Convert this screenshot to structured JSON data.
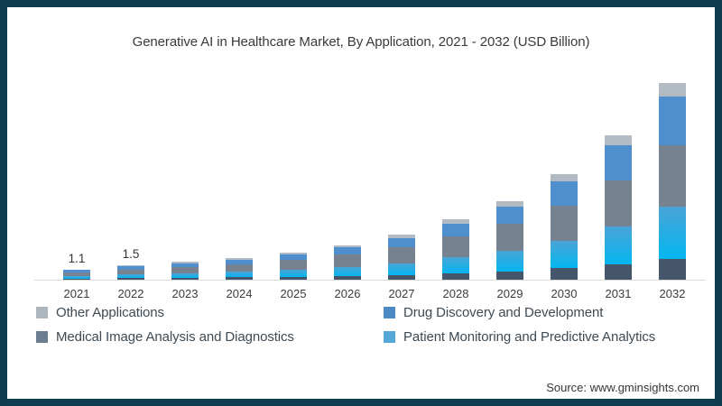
{
  "title": "Generative AI in Healthcare Market, By Application, 2021 - 2032 (USD Billion)",
  "source": "Source: www.gminsights.com",
  "frame": {
    "border_color": "#0e3e4f",
    "background": "#ffffff"
  },
  "legend": [
    {
      "label": "Other Applications",
      "color": "#aeb6bd"
    },
    {
      "label": "Drug Discovery and Development",
      "color": "#4a89c4"
    },
    {
      "label": "Medical Image Analysis and Diagnostics",
      "color": "#6b7d90"
    },
    {
      "label": "Patient Monitoring and Predictive Analytics",
      "color": "#55a7d8"
    }
  ],
  "chart_data": {
    "type": "bar",
    "stacked": true,
    "title": "Generative AI in Healthcare Market, By Application, 2021 - 2032 (USD Billion)",
    "unit": "USD Billion",
    "categories": [
      "2021",
      "2022",
      "2023",
      "2024",
      "2025",
      "2026",
      "2027",
      "2028",
      "2029",
      "2030",
      "2031",
      "2032"
    ],
    "totals_estimated": [
      1.1,
      1.5,
      1.9,
      2.3,
      2.9,
      3.7,
      4.8,
      6.4,
      8.4,
      11.3,
      15.4,
      21.0
    ],
    "bar_labels": {
      "2021": "1.1",
      "2022": "1.5"
    },
    "series_bottom_to_top": [
      {
        "name": "unlabeled dark base segment",
        "color": "#46566a",
        "values": [
          0.12,
          0.16,
          0.2,
          0.25,
          0.31,
          0.4,
          0.51,
          0.69,
          0.9,
          1.21,
          1.65,
          2.25
        ]
      },
      {
        "name": "Patient Monitoring and Predictive Analytics",
        "color": "#1fb0ea",
        "gradient": [
          "#4aa4d7",
          "#04b6f0"
        ],
        "values": [
          0.29,
          0.39,
          0.5,
          0.6,
          0.76,
          0.97,
          1.26,
          1.68,
          2.2,
          2.96,
          4.03,
          5.5
        ]
      },
      {
        "name": "Medical Image Analysis and Diagnostics",
        "color": "#76828f",
        "values": [
          0.39,
          0.53,
          0.67,
          0.8,
          1.01,
          1.29,
          1.66,
          2.24,
          2.88,
          3.7,
          4.92,
          6.55
        ]
      },
      {
        "name": "Drug Discovery and Development",
        "color": "#4f8fcd",
        "values": [
          0.23,
          0.32,
          0.4,
          0.49,
          0.62,
          0.79,
          1.04,
          1.35,
          1.85,
          2.66,
          3.75,
          5.27
        ]
      },
      {
        "name": "Other Applications",
        "color": "#b2bac3",
        "values": [
          0.07,
          0.1,
          0.13,
          0.16,
          0.2,
          0.25,
          0.33,
          0.44,
          0.57,
          0.77,
          1.05,
          1.43
        ]
      }
    ],
    "axis": {
      "baseline_color": "#dadada",
      "gridlines": false,
      "y_axis_visible": false,
      "legend_position": "bottom-two-columns"
    }
  }
}
